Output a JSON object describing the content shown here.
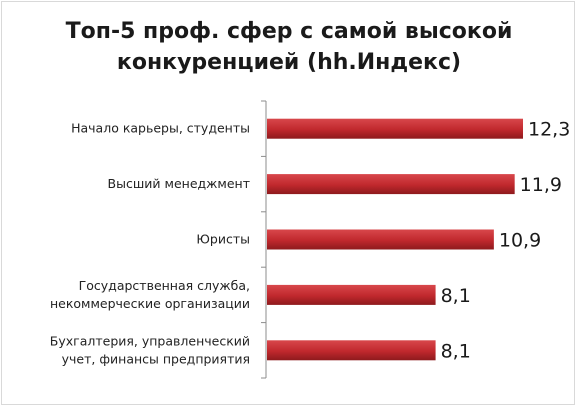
{
  "chart_data": {
    "type": "bar",
    "orientation": "horizontal",
    "title": [
      "Топ-5 проф. сфер с самой высокой",
      "конкуренцией (hh.Индекс)"
    ],
    "categories": [
      [
        "Начало карьеры, студенты"
      ],
      [
        "Высший менеджмент"
      ],
      [
        "Юристы"
      ],
      [
        "Государственная служба,",
        "некоммерческие организации"
      ],
      [
        "Бухгалтерия, управленческий",
        "учет, финансы предприятия"
      ]
    ],
    "values": [
      12.3,
      11.9,
      10.9,
      8.1,
      8.1
    ],
    "value_labels": [
      "12,3",
      "11,9",
      "10,9",
      "8,1",
      "8,1"
    ],
    "xlim": [
      0,
      12.3
    ],
    "grid": false,
    "legend": "none",
    "colors": {
      "bar": "#c0282d",
      "bar_dark": "#8e1a1d",
      "bar_light": "#d8474b",
      "axis": "#8c8c8c"
    }
  }
}
